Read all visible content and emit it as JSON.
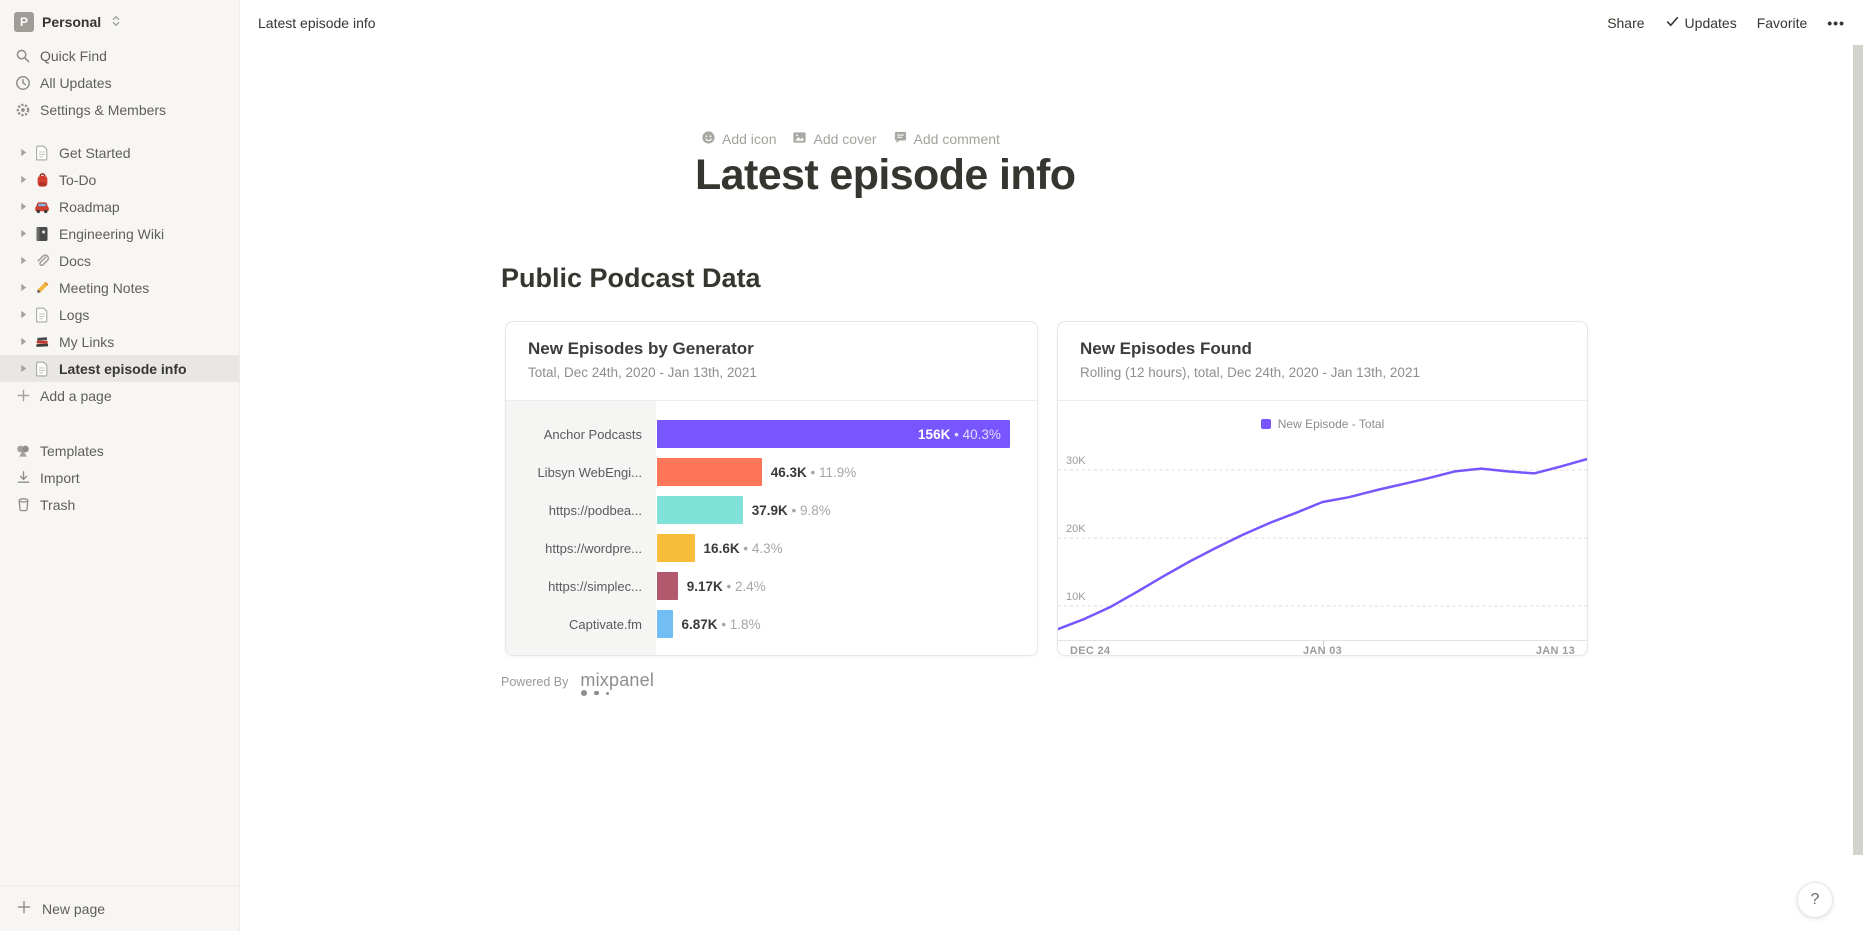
{
  "workspace": {
    "name": "Personal",
    "initial": "P"
  },
  "topbar": {
    "breadcrumb": "Latest episode info",
    "share": "Share",
    "updates": "Updates",
    "favorite": "Favorite",
    "more": "•••"
  },
  "sidebar": {
    "menu": [
      {
        "label": "Quick Find"
      },
      {
        "label": "All Updates"
      },
      {
        "label": "Settings & Members"
      }
    ],
    "pages": [
      {
        "label": "Get Started",
        "icon": "page"
      },
      {
        "label": "To-Do",
        "icon": "backpack"
      },
      {
        "label": "Roadmap",
        "icon": "car"
      },
      {
        "label": "Engineering Wiki",
        "icon": "notebook"
      },
      {
        "label": "Docs",
        "icon": "paperclip"
      },
      {
        "label": "Meeting Notes",
        "icon": "pencil"
      },
      {
        "label": "Logs",
        "icon": "page"
      },
      {
        "label": "My Links",
        "icon": "books"
      },
      {
        "label": "Latest episode info",
        "icon": "page",
        "selected": true
      }
    ],
    "add_page": "Add a page",
    "footer": [
      {
        "label": "Templates"
      },
      {
        "label": "Import"
      },
      {
        "label": "Trash"
      }
    ],
    "new_page": "New page"
  },
  "page": {
    "controls": [
      {
        "label": "Add icon"
      },
      {
        "label": "Add cover"
      },
      {
        "label": "Add comment"
      }
    ],
    "title": "Latest episode info",
    "section_heading": "Public Podcast Data",
    "powered_by": "Powered By",
    "mixpanel": "mixpanel",
    "help": "?"
  },
  "chart_data": [
    {
      "type": "bar",
      "orientation": "horizontal",
      "title": "New Episodes by Generator",
      "subtitle": "Total, Dec 24th, 2020 - Jan 13th, 2021",
      "categories": [
        "Anchor Podcasts",
        "Libsyn WebEngi...",
        "https://podbea...",
        "https://wordpre...",
        "https://simplec...",
        "Captivate.fm"
      ],
      "values": [
        156000,
        46300,
        37900,
        16600,
        9170,
        6870
      ],
      "value_labels": [
        "156K",
        "46.3K",
        "37.9K",
        "16.6K",
        "9.17K",
        "6.87K"
      ],
      "pct_labels": [
        "40.3%",
        "11.9%",
        "9.8%",
        "4.3%",
        "2.4%",
        "1.8%"
      ],
      "label_sep": "•",
      "label_inside": [
        true,
        false,
        false,
        false,
        false,
        false
      ],
      "colors": [
        "#7856FF",
        "#FF7557",
        "#80E1D9",
        "#F8BC3B",
        "#B2596E",
        "#72BEF4"
      ],
      "scale_max": 168000,
      "grid": false
    },
    {
      "type": "line",
      "title": "New Episodes Found",
      "subtitle": "Rolling (12 hours), total, Dec 24th, 2020 - Jan 13th, 2021",
      "legend": [
        "New Episode - Total"
      ],
      "legend_position": "top-center",
      "line_color": "#7856FF",
      "x_range": [
        "Dec 24, 2020",
        "Jan 13, 2021"
      ],
      "x_ticks": [
        {
          "label": "DEC 24",
          "pos": 0.0
        },
        {
          "label": "JAN 03",
          "pos": 0.5
        },
        {
          "label": "JAN 13",
          "pos": 1.0
        }
      ],
      "y_ticks": [
        {
          "value": 10000,
          "label": "10K"
        },
        {
          "value": 20000,
          "label": "20K"
        },
        {
          "value": 30000,
          "label": "30K"
        }
      ],
      "ylim": [
        4850,
        33970
      ],
      "values": [
        6600,
        8100,
        9900,
        12100,
        14400,
        16600,
        18600,
        20500,
        22200,
        23700,
        25300,
        26000,
        27000,
        27900,
        28800,
        29800,
        30200,
        29800,
        29500,
        30500,
        31600
      ],
      "grid": "dashed-horizontal"
    }
  ]
}
